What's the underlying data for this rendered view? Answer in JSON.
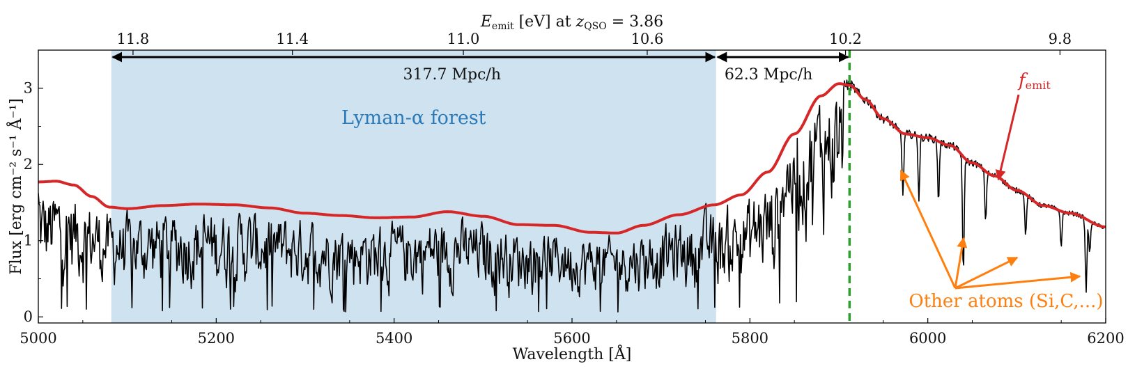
{
  "chart_data": {
    "type": "line",
    "xlabel": "Wavelength [Å]",
    "ylabel": "Flux [erg cm⁻² s⁻¹ Å⁻¹]",
    "xlim": [
      5000,
      6200
    ],
    "ylim": [
      -0.08,
      3.5
    ],
    "x_ticks": [
      5000,
      5200,
      5400,
      5600,
      5800,
      6000,
      6200
    ],
    "y_ticks": [
      0,
      1,
      2,
      3
    ],
    "top_axis": {
      "label": "E_emit [eV] at z_QSO = 3.86",
      "z_qso": 3.86,
      "ticks": [
        11.8,
        11.4,
        11.0,
        10.6,
        10.2,
        9.8
      ]
    },
    "grid": false,
    "series": [
      {
        "name": "f_emit",
        "color": "#d62728",
        "x": [
          5000,
          5020,
          5040,
          5060,
          5080,
          5100,
          5140,
          5180,
          5220,
          5260,
          5300,
          5340,
          5380,
          5420,
          5460,
          5500,
          5540,
          5580,
          5620,
          5650,
          5680,
          5720,
          5760,
          5790,
          5820,
          5850,
          5880,
          5900,
          5912,
          5930,
          5950,
          5975,
          6000,
          6025,
          6050,
          6075,
          6100,
          6130,
          6160,
          6200
        ],
        "y": [
          1.77,
          1.78,
          1.73,
          1.58,
          1.44,
          1.42,
          1.46,
          1.48,
          1.47,
          1.43,
          1.36,
          1.33,
          1.3,
          1.31,
          1.38,
          1.32,
          1.21,
          1.2,
          1.11,
          1.1,
          1.2,
          1.34,
          1.47,
          1.6,
          1.9,
          2.4,
          2.9,
          3.06,
          3.04,
          2.85,
          2.6,
          2.4,
          2.35,
          2.25,
          2.02,
          1.85,
          1.66,
          1.46,
          1.36,
          1.18
        ]
      },
      {
        "name": "observed flux",
        "color": "#000000",
        "note": "noisy quasar spectrum; absorption lines generated from f_emit"
      }
    ],
    "shaded_region": {
      "label": "Lyman-α forest",
      "x_range": [
        5082,
        5762
      ],
      "color": "#cfe2f0"
    },
    "reference_line": {
      "x": 5912,
      "color": "#2ca02c",
      "style": "dashed"
    },
    "annotations": {
      "distance_1": {
        "label": "317.7 Mpc/h",
        "x_range": [
          5082,
          5762
        ]
      },
      "distance_2": {
        "label": "62.3 Mpc/h",
        "x_range": [
          5762,
          5912
        ]
      },
      "femit_label": "f_emit",
      "other_atoms_label": "Other atoms (Si,C,...)"
    }
  }
}
